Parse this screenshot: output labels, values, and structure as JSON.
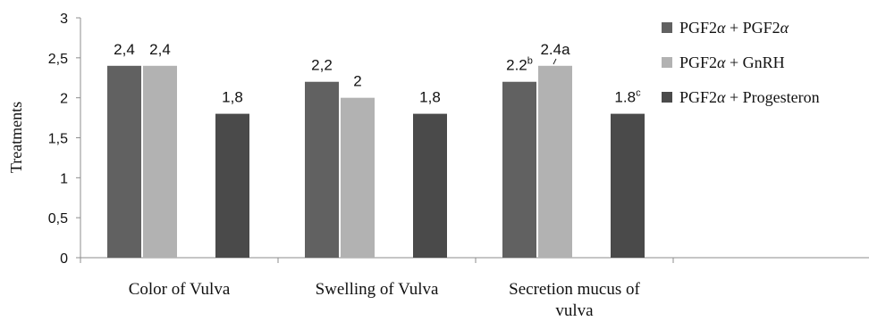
{
  "chart_data": {
    "type": "bar",
    "ylabel": "Treatments",
    "ylim": [
      0,
      3
    ],
    "yticks": [
      "0",
      "0,5",
      "1",
      "1,5",
      "2",
      "2,5",
      "3"
    ],
    "categories": [
      "Color of Vulva",
      "Swelling of Vulva",
      "Secretion mucus of vulva"
    ],
    "series": [
      {
        "name_parts": [
          "PGF2",
          "α",
          " + PGF2",
          "α"
        ],
        "color": "#616161",
        "values": [
          2.4,
          2.2,
          2.2
        ],
        "labels": [
          {
            "text": "2,4",
            "sup": ""
          },
          {
            "text": "2,2",
            "sup": ""
          },
          {
            "text": "2.2",
            "sup": "b"
          }
        ]
      },
      {
        "name_parts": [
          "PGF2",
          "α",
          " + GnRH"
        ],
        "color": "#b2b2b2",
        "values": [
          2.4,
          2.0,
          2.4
        ],
        "labels": [
          {
            "text": "2,4",
            "sup": ""
          },
          {
            "text": "2",
            "sup": ""
          },
          {
            "text": "2.4a",
            "sup": ""
          }
        ]
      },
      {
        "name_parts": [
          "PGF2",
          "α",
          " + Progesteron"
        ],
        "color": "#4a4a4a",
        "values": [
          1.8,
          1.8,
          1.8
        ],
        "labels": [
          {
            "text": "1,8",
            "sup": ""
          },
          {
            "text": "1,8",
            "sup": ""
          },
          {
            "text": "1.8",
            "sup": "c"
          }
        ]
      }
    ],
    "grid": false,
    "legend_position": "right"
  }
}
